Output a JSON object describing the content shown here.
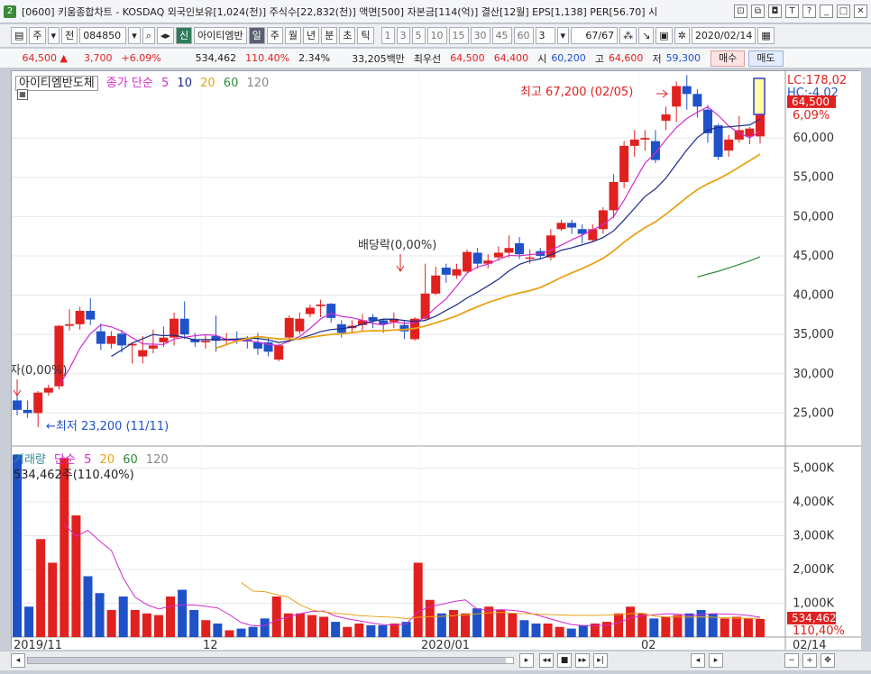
{
  "window": {
    "badge": "2",
    "title": "[0600] 키움종합차트 - KOSDAQ 외국인보유[1,024(천)] 주식수[22,832(천)] 액면[500] 자본금[114(억)] 결산[12월] EPS[1,138] PER[56.70] 시",
    "buttons": [
      "⊡",
      "⧉",
      "◘",
      "T",
      "?",
      "_",
      "□",
      "✕"
    ]
  },
  "toolbar": {
    "period": "주",
    "jeon": "전",
    "code": "084850",
    "badge_sin": "신",
    "stock_name": "아이티엠반",
    "tabs": [
      "일",
      "주",
      "월",
      "년",
      "분",
      "초",
      "틱"
    ],
    "intervals": [
      "1",
      "3",
      "5",
      "10",
      "15",
      "30",
      "45",
      "60"
    ],
    "multiplier": "3",
    "count": "67/67",
    "date": "2020/02/14"
  },
  "quote": {
    "price": "64,500",
    "arrow": "▲",
    "change": "3,700",
    "rate": "+6.09%",
    "volume": "534,462",
    "vol_ratio": "110.40%",
    "turnover": "2.34%",
    "amount": "33,205백만",
    "best_label": "최우선",
    "ask": "64,500",
    "bid": "64,400",
    "open_label": "시",
    "open": "60,200",
    "high_label": "고",
    "high": "64,600",
    "low_label": "저",
    "low": "59,300",
    "buy": "매수",
    "sell": "매도"
  },
  "legend": {
    "stock_name": "아이티엠반도체",
    "price_label": "종가 단순",
    "ma": [
      "5",
      "10",
      "20",
      "60",
      "120"
    ],
    "volume_label": "거래량",
    "volume_ma_label": "단순",
    "vol_ma": [
      "5",
      "20",
      "60",
      "120"
    ],
    "volume_value": "534,462주(110.40%)"
  },
  "annotations": {
    "high": "최고 67,200 (02/05)",
    "low": "←최저 23,200 (11/11)",
    "dividend": "배당락(0,00%)",
    "left_cut": "자(0,00%)"
  },
  "right_labels": {
    "lc": "LC:178,02",
    "hc": "HC:-4,02",
    "price_tag": "64,500",
    "pct_tag": "6,09%",
    "vol_tag": "534,462",
    "vol_pct_tag": "110,40%"
  },
  "xaxis_labels": [
    "2019/11",
    "12",
    "2020/01",
    "02"
  ],
  "xaxis_last": "02/14",
  "colors": {
    "up": "#e0211f",
    "down": "#1f52c9",
    "ma5": "#d22ad2",
    "ma10": "#1a2a8a",
    "ma20": "#e8a317",
    "ma60": "#2f8a3a",
    "ma120": "#888888"
  },
  "chart_data": [
    {
      "type": "candlestick",
      "title": "아이티엠반도체",
      "price_axis_ticks": [
        "25,000",
        "30,000",
        "35,000",
        "40,000",
        "45,000",
        "50,000",
        "55,000",
        "60,000"
      ],
      "price_axis_range": [
        20800,
        68500
      ],
      "high": 67200,
      "low": 23200,
      "last": 64500
    },
    {
      "type": "bar",
      "title": "거래량",
      "volume_axis_ticks": [
        "1,000K",
        "2,000K",
        "3,000K",
        "4,000K",
        "5,000K"
      ],
      "volume_axis_range": [
        0,
        5600
      ],
      "unit": "K",
      "last": 534462
    }
  ]
}
